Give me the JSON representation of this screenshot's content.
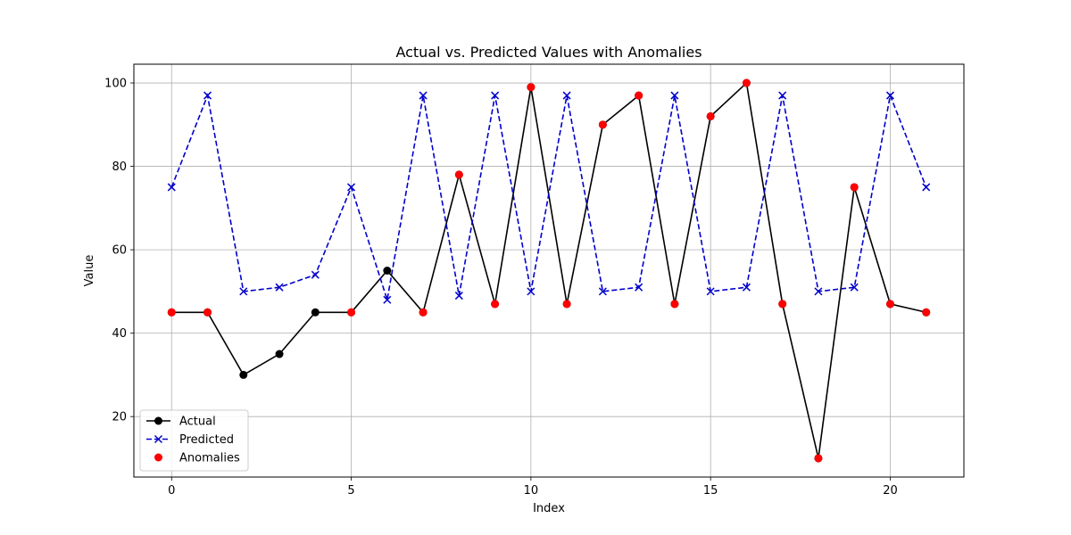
{
  "chart_data": {
    "type": "line",
    "title": "Actual vs. Predicted Values with Anomalies",
    "xlabel": "Index",
    "ylabel": "Value",
    "x": [
      0,
      1,
      2,
      3,
      4,
      5,
      6,
      7,
      8,
      9,
      10,
      11,
      12,
      13,
      14,
      15,
      16,
      17,
      18,
      19,
      20,
      21
    ],
    "xlim": [
      -1.05,
      22.05
    ],
    "ylim": [
      5.5,
      104.5
    ],
    "xticks": [
      0,
      5,
      10,
      15,
      20
    ],
    "yticks": [
      20,
      40,
      60,
      80,
      100
    ],
    "grid": true,
    "legend_position": "lower-left",
    "series": [
      {
        "name": "Actual",
        "color": "#000000",
        "line_style": "solid",
        "marker": "circle",
        "values": [
          45,
          45,
          30,
          35,
          45,
          45,
          55,
          45,
          78,
          47,
          99,
          47,
          90,
          97,
          47,
          92,
          100,
          47,
          10,
          75,
          47,
          45
        ]
      },
      {
        "name": "Predicted",
        "color": "#0000cc",
        "line_style": "dashed",
        "marker": "x",
        "values": [
          75,
          97,
          50,
          51,
          54,
          75,
          48,
          97,
          49,
          97,
          50,
          97,
          50,
          51,
          97,
          50,
          51,
          97,
          50,
          51,
          97,
          75
        ]
      },
      {
        "name": "Anomalies",
        "color": "#ff0000",
        "line_style": "none",
        "marker": "circle",
        "points": [
          [
            0,
            45
          ],
          [
            1,
            45
          ],
          [
            5,
            45
          ],
          [
            7,
            45
          ],
          [
            8,
            78
          ],
          [
            9,
            47
          ],
          [
            10,
            99
          ],
          [
            11,
            47
          ],
          [
            12,
            90
          ],
          [
            13,
            97
          ],
          [
            14,
            47
          ],
          [
            15,
            92
          ],
          [
            16,
            100
          ],
          [
            17,
            47
          ],
          [
            18,
            10
          ],
          [
            19,
            75
          ],
          [
            20,
            47
          ],
          [
            21,
            45
          ]
        ]
      }
    ]
  }
}
